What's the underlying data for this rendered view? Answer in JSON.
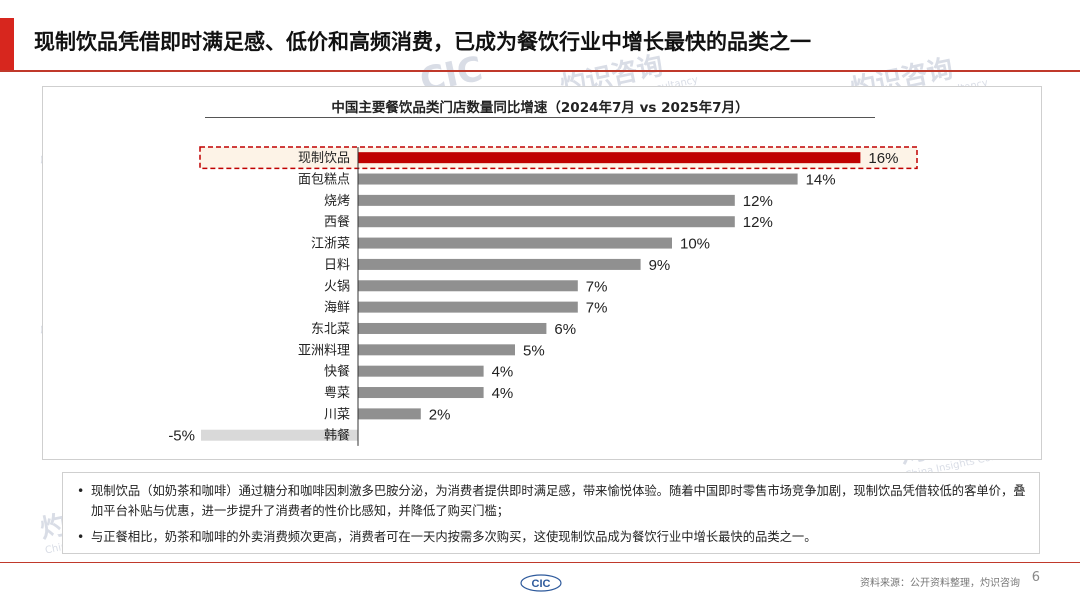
{
  "page": {
    "title": "现制饮品凭借即时满足感、低价和高频消费，已成为餐饮行业中增长最快的品类之一",
    "page_number": "6",
    "source": "资料来源：公开资料整理，灼识咨询",
    "footer_logo_text": "CIC"
  },
  "watermarks": [
    {
      "text": "灼识咨询",
      "sub": "China Insights Consultancy"
    },
    {
      "text": "CIC"
    }
  ],
  "colors": {
    "accent": "#d7261e",
    "highlight_bar": "#c00000",
    "bar": "#909090",
    "negative_bar": "#d9d9d9",
    "highlight_box_fill": "#fdf3e7",
    "highlight_box_border": "#c00000"
  },
  "chart_data": {
    "type": "bar",
    "orientation": "horizontal",
    "title": "中国主要餐饮品类门店数量同比增速（2024年7月 vs 2025年7月）",
    "categories": [
      "现制饮品",
      "面包糕点",
      "烧烤",
      "西餐",
      "江浙菜",
      "日料",
      "火锅",
      "海鲜",
      "东北菜",
      "亚洲料理",
      "快餐",
      "粤菜",
      "川菜",
      "韩餐"
    ],
    "values": [
      16,
      14,
      12,
      12,
      10,
      9,
      7,
      7,
      6,
      5,
      4,
      4,
      2,
      -5
    ],
    "value_labels": [
      "16%",
      "14%",
      "12%",
      "12%",
      "10%",
      "9%",
      "7%",
      "7%",
      "6%",
      "5%",
      "4%",
      "4%",
      "2%",
      "-5%"
    ],
    "unit": "%",
    "highlight_category": "现制饮品",
    "xlim": [
      -6,
      17
    ],
    "grid": false,
    "legend": false
  },
  "notes": [
    "现制饮品（如奶茶和咖啡）通过糖分和咖啡因刺激多巴胺分泌，为消费者提供即时满足感，带来愉悦体验。随着中国即时零售市场竞争加剧，现制饮品凭借较低的客单价，叠加平台补贴与优惠，进一步提升了消费者的性价比感知，并降低了购买门槛；",
    "与正餐相比，奶茶和咖啡的外卖消费频次更高，消费者可在一天内按需多次购买，这使现制饮品成为餐饮行业中增长最快的品类之一。"
  ]
}
